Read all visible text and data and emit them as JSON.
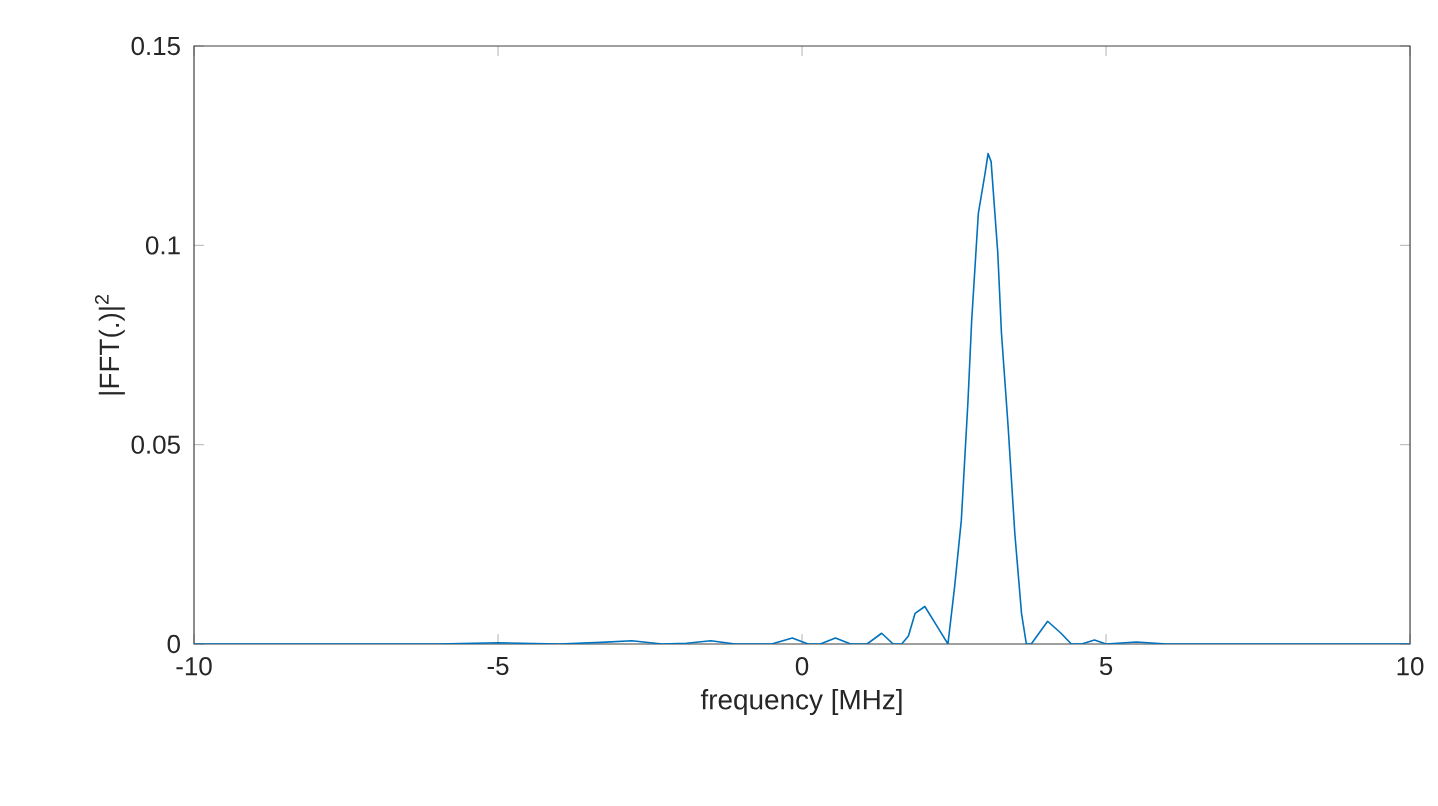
{
  "chart_data": {
    "type": "line",
    "xlabel": "frequency [MHz]",
    "ylabel": "|FFT(.)|$^{2}$",
    "x": [
      -10,
      -6,
      -5,
      -4,
      -3.3,
      -2.8,
      -2.3,
      -1.9,
      -1.5,
      -1.1,
      -0.5,
      -0.16,
      0.1,
      0.3,
      0.55,
      0.8,
      1.07,
      1.31,
      1.5,
      1.64,
      1.75,
      1.86,
      2.02,
      2.24,
      2.4,
      2.51,
      2.62,
      2.73,
      2.79,
      2.9,
      3.01,
      3.06,
      3.11,
      3.22,
      3.28,
      3.39,
      3.5,
      3.61,
      3.69,
      3.77,
      4.04,
      4.26,
      4.43,
      4.6,
      4.81,
      5.0,
      5.5,
      6.0,
      7,
      10
    ],
    "series": [
      {
        "color": "#0072bd",
        "values": [
          0,
          0,
          0.0003,
          0,
          0.0004,
          0.0008,
          0,
          0.0002,
          0.0008,
          0,
          0,
          0.0015,
          0,
          0,
          0.0015,
          0,
          0,
          0.0027,
          0,
          0,
          0.002,
          0.0077,
          0.0094,
          0.004,
          0,
          0.0144,
          0.031,
          0.061,
          0.081,
          0.108,
          0.118,
          0.123,
          0.121,
          0.098,
          0.078,
          0.0545,
          0.0277,
          0.0077,
          0,
          0,
          0.0057,
          0.0027,
          0,
          0,
          0.001,
          0,
          0.0005,
          0,
          0,
          0
        ]
      }
    ],
    "xlim": [
      -10,
      10
    ],
    "ylim": [
      0,
      0.15
    ],
    "xticks": [
      -10,
      -5,
      0,
      5,
      10
    ],
    "yticks": [
      0,
      0.05,
      0.1,
      0.15
    ],
    "grid": false,
    "marker": "none",
    "line_style": "solid"
  }
}
